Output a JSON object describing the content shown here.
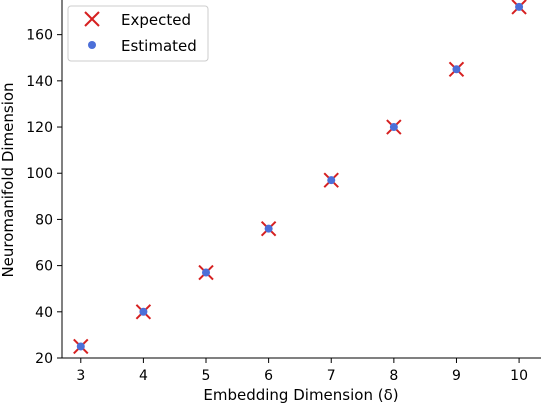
{
  "chart_data": {
    "type": "scatter",
    "xlabel": "Embedding Dimension (δ)",
    "ylabel": "Neuromanifold Dimension",
    "xlim": [
      2.7,
      10.35
    ],
    "ylim": [
      20,
      175
    ],
    "xticks": [
      3,
      4,
      5,
      6,
      7,
      8,
      9,
      10
    ],
    "yticks": [
      20,
      40,
      60,
      80,
      100,
      120,
      140,
      160
    ],
    "grid": false,
    "legend_position": "top-left",
    "series": [
      {
        "name": "Expected",
        "marker": "x",
        "color": "#d62020",
        "x": [
          3,
          4,
          5,
          6,
          7,
          8,
          9,
          10
        ],
        "y": [
          25,
          40,
          57,
          76,
          97,
          120,
          145,
          172
        ]
      },
      {
        "name": "Estimated",
        "marker": "circle",
        "color": "#4c6fd8",
        "x": [
          3,
          4,
          5,
          6,
          7,
          8,
          9,
          10
        ],
        "y": [
          25,
          40,
          57,
          76,
          97,
          120,
          145,
          172
        ]
      }
    ]
  }
}
